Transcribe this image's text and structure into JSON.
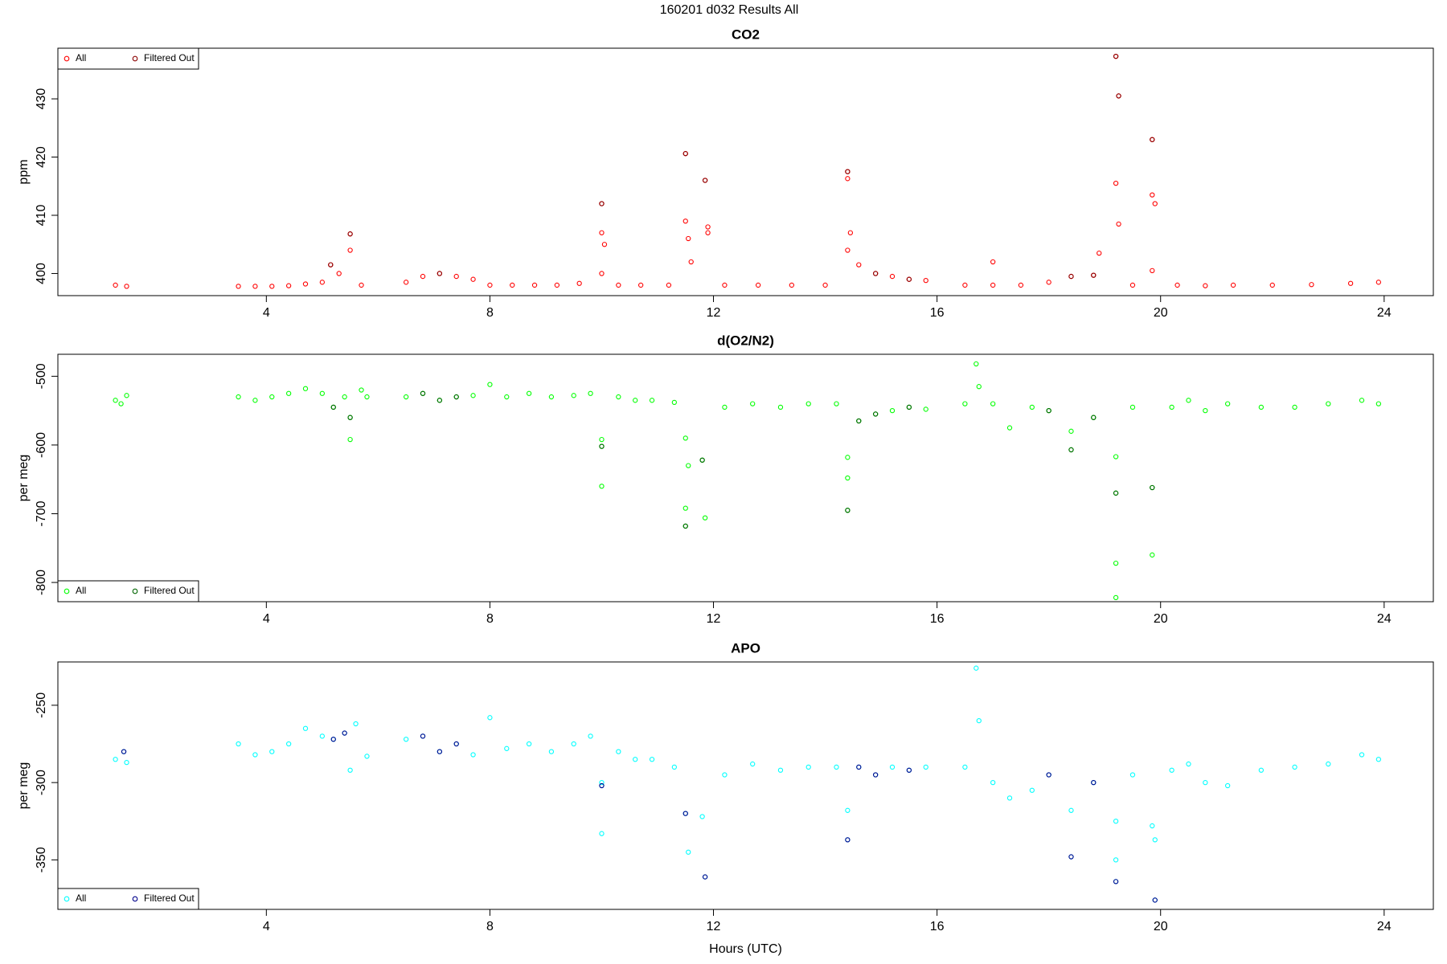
{
  "title": "160201   d032   Results All",
  "chart_data": [
    {
      "type": "scatter",
      "title": "CO2",
      "ylabel": "ppm",
      "legend": "top-left",
      "xlim": [
        0.27,
        24.88
      ],
      "xticks": [
        4,
        8,
        12,
        16,
        20,
        24
      ],
      "ylim": [
        396.2,
        438.7
      ],
      "yticks": [
        400,
        410,
        420,
        430
      ],
      "series": [
        {
          "name": "All",
          "color": "#ff0000",
          "x": [
            1.3,
            1.5,
            3.5,
            3.8,
            4.1,
            4.4,
            4.7,
            5.0,
            5.15,
            5.3,
            5.5,
            5.5,
            5.7,
            6.5,
            6.8,
            7.1,
            7.4,
            7.7,
            8.0,
            8.4,
            8.8,
            9.2,
            9.6,
            10.0,
            10.0,
            10.05,
            10.0,
            10.3,
            10.7,
            11.2,
            11.5,
            11.5,
            11.55,
            11.6,
            11.85,
            11.9,
            11.9,
            12.2,
            12.8,
            13.4,
            14.0,
            14.4,
            14.4,
            14.45,
            14.4,
            14.6,
            14.9,
            15.2,
            15.5,
            15.8,
            16.5,
            17.0,
            17.0,
            17.5,
            18.0,
            18.4,
            18.8,
            18.9,
            19.2,
            19.25,
            19.2,
            19.25,
            19.5,
            19.85,
            19.85,
            19.9,
            19.85,
            20.3,
            20.8,
            21.3,
            22.0,
            22.7,
            23.4,
            23.9
          ],
          "values": [
            398,
            397.8,
            397.8,
            397.8,
            397.8,
            397.9,
            398.2,
            398.5,
            401.5,
            400,
            406.8,
            404,
            398,
            398.5,
            399.5,
            400,
            399.5,
            399,
            398,
            398,
            398,
            398,
            398.3,
            412,
            407,
            405,
            400,
            398,
            398,
            398,
            420.6,
            409,
            406,
            402,
            416,
            408,
            407,
            398,
            398,
            398,
            398,
            417.5,
            416.3,
            407,
            404,
            401.5,
            400,
            399.5,
            399,
            398.8,
            398,
            402,
            398,
            398,
            398.5,
            399.5,
            399.7,
            403.5,
            437.3,
            430.5,
            415.5,
            408.5,
            398,
            423,
            413.5,
            412,
            400.5,
            398,
            397.9,
            398,
            398,
            398.1,
            398.3,
            398.5
          ]
        },
        {
          "name": "Filtered Out",
          "color": "#8b0000",
          "x": [
            5.15,
            5.5,
            7.1,
            10.0,
            11.5,
            11.85,
            14.4,
            14.9,
            15.5,
            18.4,
            18.8,
            19.2,
            19.25,
            19.85
          ],
          "values": [
            401.5,
            406.8,
            400,
            412,
            420.6,
            416,
            417.5,
            400,
            399,
            399.5,
            399.7,
            437.3,
            430.5,
            423
          ]
        }
      ]
    },
    {
      "type": "scatter",
      "title": "d(O2/N2)",
      "ylabel": "per meg",
      "legend": "bottom-left",
      "xlim": [
        0.27,
        24.88
      ],
      "xticks": [
        4,
        8,
        12,
        16,
        20,
        24
      ],
      "ylim": [
        -828,
        -468
      ],
      "yticks": [
        -500,
        -600,
        -700,
        -800
      ],
      "series": [
        {
          "name": "All",
          "color": "#00ff00",
          "x": [
            1.3,
            1.4,
            1.5,
            3.5,
            3.8,
            4.1,
            4.4,
            4.7,
            5.0,
            5.2,
            5.4,
            5.5,
            5.5,
            5.7,
            5.8,
            6.5,
            6.8,
            7.1,
            7.4,
            7.7,
            8.0,
            8.3,
            8.7,
            9.1,
            9.5,
            9.8,
            10.0,
            10.0,
            10.0,
            10.3,
            10.6,
            10.9,
            11.3,
            11.5,
            11.55,
            11.5,
            11.5,
            11.8,
            11.85,
            12.2,
            12.7,
            13.2,
            13.7,
            14.2,
            14.4,
            14.4,
            14.4,
            14.6,
            14.9,
            15.2,
            15.5,
            15.8,
            16.5,
            16.7,
            16.75,
            17.0,
            17.3,
            17.7,
            18.0,
            18.4,
            18.4,
            18.8,
            19.2,
            19.2,
            19.2,
            19.2,
            19.5,
            19.85,
            19.85,
            20.2,
            20.5,
            20.8,
            21.2,
            21.8,
            22.4,
            23.0,
            23.6,
            23.9
          ],
          "values": [
            -535,
            -540,
            -528,
            -530,
            -535,
            -530,
            -525,
            -518,
            -525,
            -545,
            -530,
            -560,
            -592,
            -520,
            -530,
            -530,
            -525,
            -535,
            -530,
            -528,
            -512,
            -530,
            -525,
            -530,
            -528,
            -525,
            -592,
            -602,
            -660,
            -530,
            -535,
            -535,
            -538,
            -590,
            -630,
            -692,
            -718,
            -622,
            -706,
            -545,
            -540,
            -545,
            -540,
            -540,
            -618,
            -648,
            -695,
            -565,
            -555,
            -550,
            -545,
            -548,
            -540,
            -482,
            -515,
            -540,
            -575,
            -545,
            -550,
            -580,
            -607,
            -560,
            -617,
            -670,
            -772,
            -822,
            -545,
            -662,
            -760,
            -545,
            -535,
            -550,
            -540,
            -545,
            -545,
            -540,
            -535,
            -540
          ]
        },
        {
          "name": "Filtered Out",
          "color": "#006400",
          "x": [
            5.2,
            5.5,
            6.8,
            7.1,
            7.4,
            10.0,
            11.5,
            11.8,
            14.4,
            14.6,
            14.9,
            15.5,
            18.0,
            18.4,
            18.8,
            19.2,
            19.85
          ],
          "values": [
            -545,
            -560,
            -525,
            -535,
            -530,
            -602,
            -718,
            -622,
            -695,
            -565,
            -555,
            -545,
            -550,
            -607,
            -560,
            -670,
            -662
          ]
        }
      ]
    },
    {
      "type": "scatter",
      "title": "APO",
      "ylabel": "per meg",
      "xlabel": "Hours (UTC)",
      "legend": "bottom-left",
      "xlim": [
        0.27,
        24.88
      ],
      "xticks": [
        4,
        8,
        12,
        16,
        20,
        24
      ],
      "ylim": [
        -382,
        -222
      ],
      "yticks": [
        -250,
        -300,
        -350
      ],
      "series": [
        {
          "name": "All",
          "color": "#00ffff",
          "x": [
            1.3,
            1.45,
            1.5,
            3.5,
            3.8,
            4.1,
            4.4,
            4.7,
            5.0,
            5.2,
            5.4,
            5.5,
            5.6,
            5.8,
            6.5,
            6.8,
            7.1,
            7.4,
            7.7,
            8.0,
            8.3,
            8.7,
            9.1,
            9.5,
            9.8,
            10.0,
            10.0,
            10.0,
            10.3,
            10.6,
            10.9,
            11.3,
            11.5,
            11.55,
            11.8,
            11.85,
            12.2,
            12.7,
            13.2,
            13.7,
            14.2,
            14.4,
            14.4,
            14.6,
            14.9,
            15.2,
            15.5,
            15.8,
            16.5,
            16.7,
            16.75,
            17.0,
            17.3,
            17.7,
            18.0,
            18.4,
            18.4,
            18.8,
            19.2,
            19.2,
            19.2,
            19.5,
            19.85,
            19.9,
            19.9,
            20.2,
            20.5,
            20.8,
            21.2,
            21.8,
            22.4,
            23.0,
            23.6,
            23.9
          ],
          "values": [
            -285,
            -280,
            -287,
            -275,
            -282,
            -280,
            -275,
            -265,
            -270,
            -272,
            -268,
            -292,
            -262,
            -283,
            -272,
            -270,
            -280,
            -275,
            -282,
            -258,
            -278,
            -275,
            -280,
            -275,
            -270,
            -300,
            -302,
            -333,
            -280,
            -285,
            -285,
            -290,
            -320,
            -345,
            -322,
            -361,
            -295,
            -288,
            -292,
            -290,
            -290,
            -318,
            -337,
            -290,
            -295,
            -290,
            -292,
            -290,
            -290,
            -226,
            -260,
            -300,
            -310,
            -305,
            -295,
            -318,
            -348,
            -300,
            -325,
            -350,
            -364,
            -295,
            -328,
            -337,
            -376,
            -292,
            -288,
            -300,
            -302,
            -292,
            -290,
            -288,
            -282,
            -285
          ]
        },
        {
          "name": "Filtered Out",
          "color": "#00008b",
          "x": [
            1.45,
            5.2,
            5.4,
            6.8,
            7.1,
            7.4,
            10.0,
            11.5,
            11.85,
            14.4,
            14.6,
            14.9,
            15.5,
            18.0,
            18.4,
            18.8,
            19.2,
            19.9
          ],
          "values": [
            -280,
            -272,
            -268,
            -270,
            -280,
            -275,
            -302,
            -320,
            -361,
            -337,
            -290,
            -295,
            -292,
            -295,
            -348,
            -300,
            -364,
            -376
          ]
        }
      ]
    }
  ]
}
